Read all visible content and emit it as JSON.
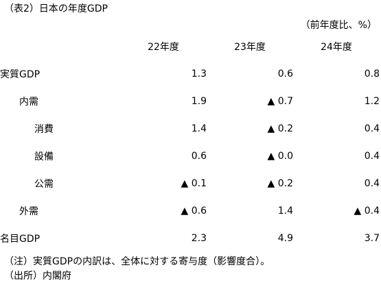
{
  "title": "（表2）日本の年度GDP",
  "unit": "（前年度比、%）",
  "table": {
    "columns": [
      "22年度",
      "23年度",
      "24年度"
    ],
    "rows": [
      {
        "label": "実質GDP",
        "level": 0,
        "values": [
          "1.3",
          "0.6",
          "0.8"
        ]
      },
      {
        "label": "内需",
        "level": 1,
        "values": [
          "1.9",
          "▲ 0.7",
          "1.2"
        ]
      },
      {
        "label": "消費",
        "level": 2,
        "values": [
          "1.4",
          "▲ 0.2",
          "0.4"
        ]
      },
      {
        "label": "設備",
        "level": 2,
        "values": [
          "0.6",
          "▲ 0.0",
          "0.4"
        ]
      },
      {
        "label": "公需",
        "level": 2,
        "values": [
          "▲ 0.1",
          "▲ 0.2",
          "0.4"
        ]
      },
      {
        "label": "外需",
        "level": 1,
        "values": [
          "▲ 0.6",
          "1.4",
          "▲ 0.4"
        ]
      },
      {
        "label": "名目GDP",
        "level": 0,
        "values": [
          "2.3",
          "4.9",
          "3.7"
        ]
      }
    ]
  },
  "notes": {
    "note": "（注）実質GDPの内訳は、全体に対する寄与度（影響度合）。",
    "source": "（出所）内閣府"
  },
  "chart_data": {
    "type": "table",
    "title": "（表2）日本の年度GDP",
    "unit": "（前年度比、%）",
    "columns": [
      "22年度",
      "23年度",
      "24年度"
    ],
    "rows": [
      {
        "name": "実質GDP",
        "values": [
          1.3,
          0.6,
          0.8
        ]
      },
      {
        "name": "内需",
        "values": [
          1.9,
          -0.7,
          1.2
        ]
      },
      {
        "name": "消費",
        "values": [
          1.4,
          -0.2,
          0.4
        ]
      },
      {
        "name": "設備",
        "values": [
          0.6,
          -0.0,
          0.4
        ]
      },
      {
        "name": "公需",
        "values": [
          -0.1,
          -0.2,
          0.4
        ]
      },
      {
        "name": "外需",
        "values": [
          -0.6,
          1.4,
          -0.4
        ]
      },
      {
        "name": "名目GDP",
        "values": [
          2.3,
          4.9,
          3.7
        ]
      }
    ]
  }
}
